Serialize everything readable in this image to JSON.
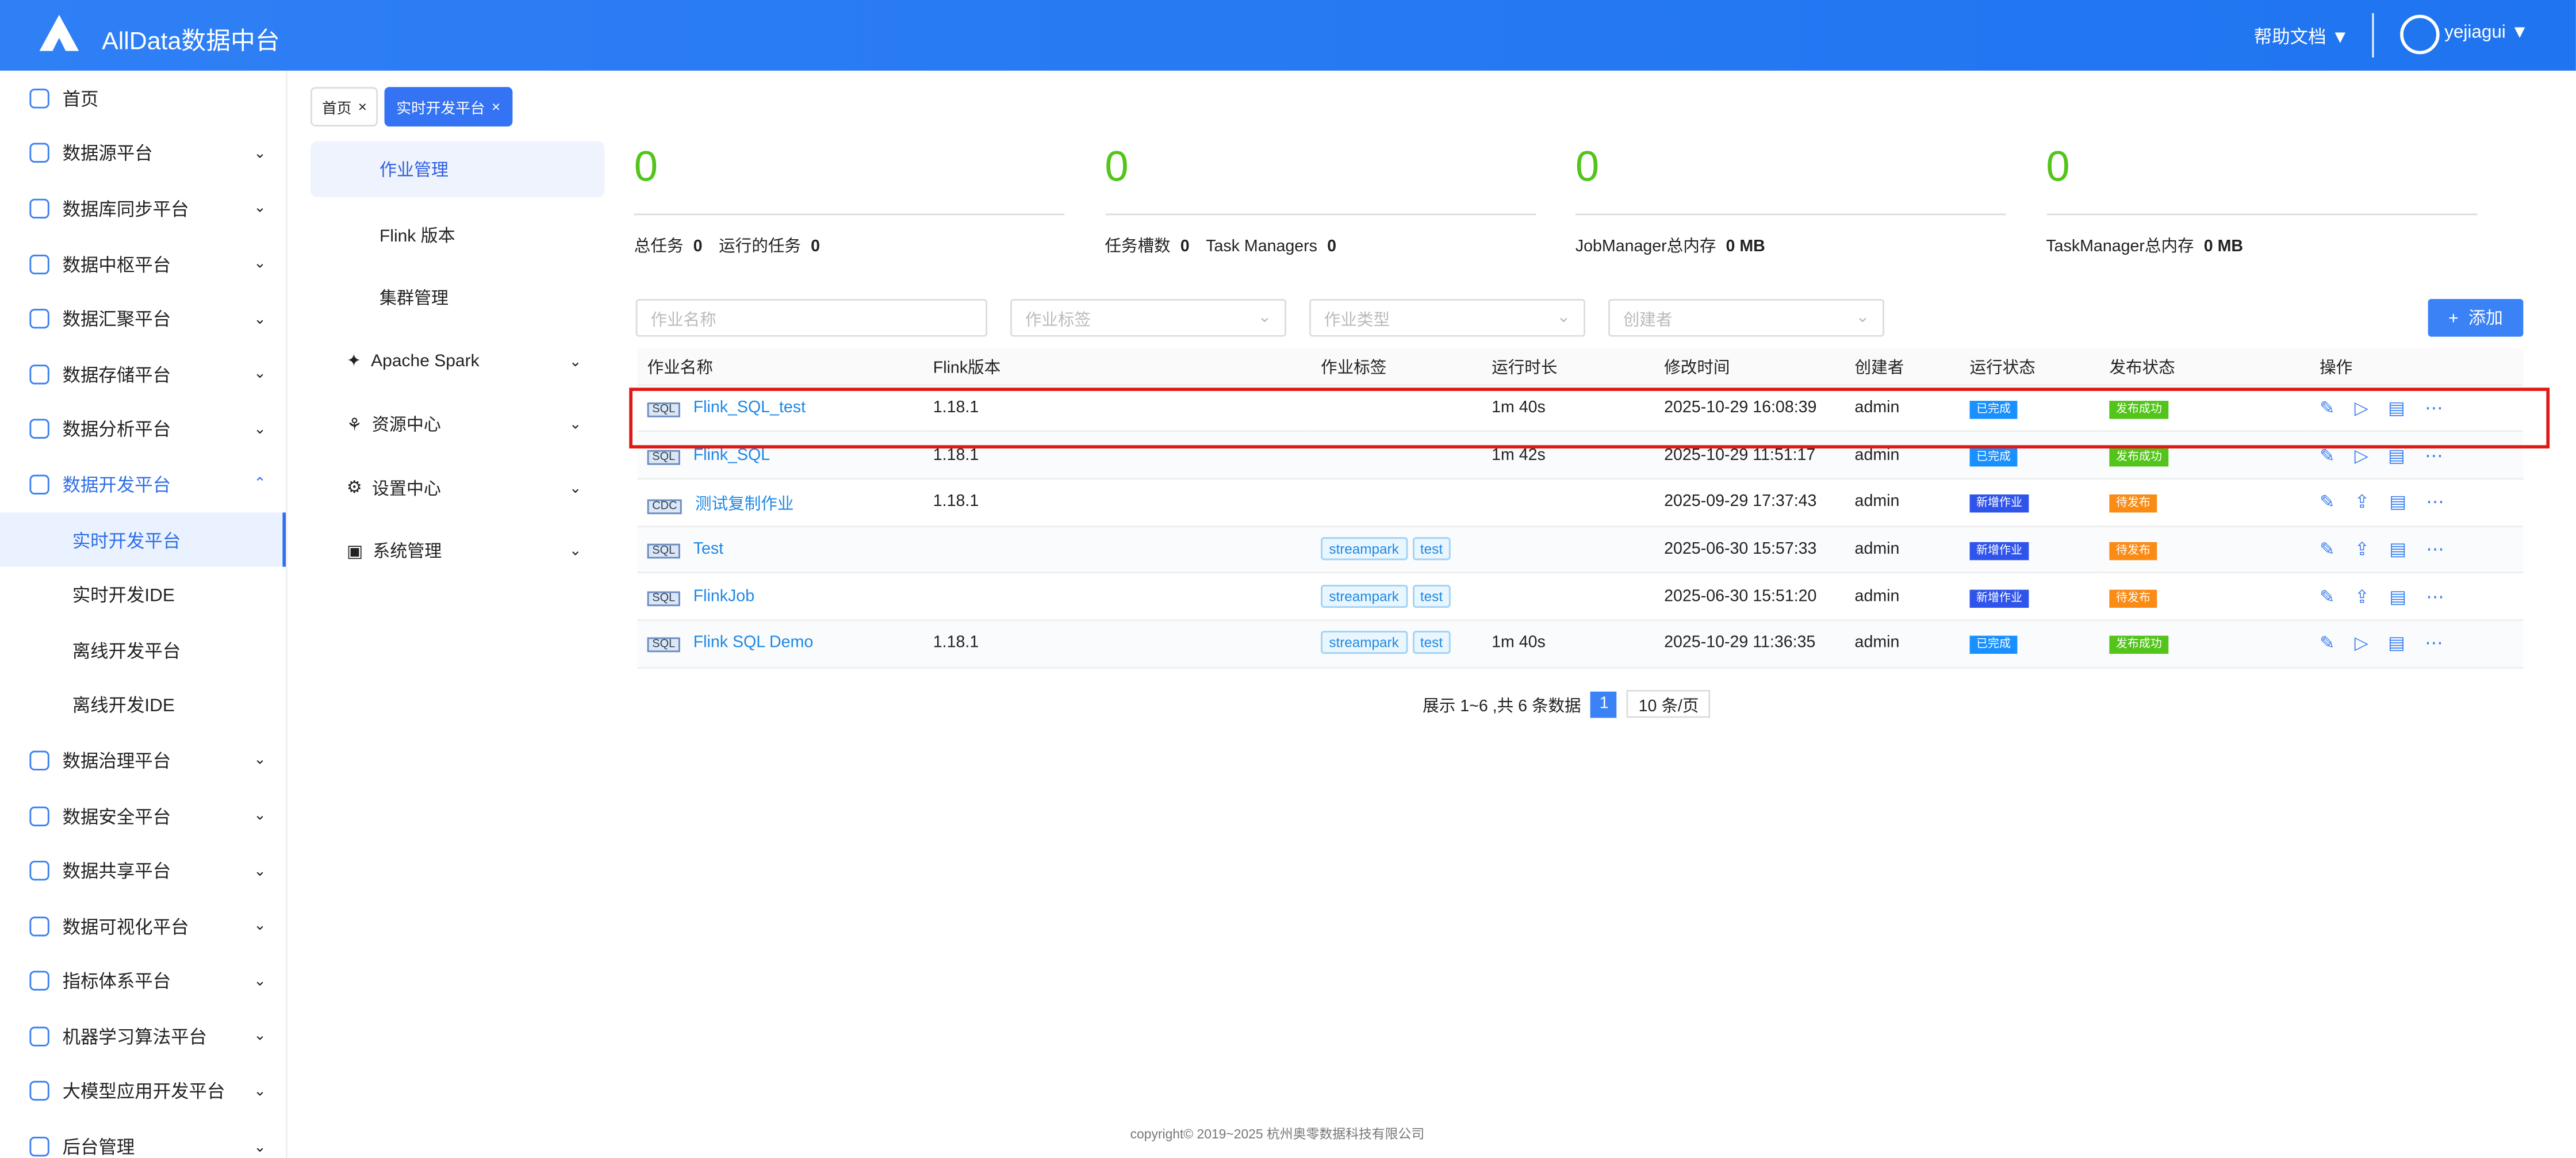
{
  "header": {
    "app_title": "AllData数据中台",
    "help": "帮助文档 ▼",
    "user": "yejiagui ▼"
  },
  "sidebar": {
    "items": [
      {
        "label": "首页",
        "chev": ""
      },
      {
        "label": "数据源平台",
        "chev": "⌄"
      },
      {
        "label": "数据库同步平台",
        "chev": "⌄"
      },
      {
        "label": "数据中枢平台",
        "chev": "⌄"
      },
      {
        "label": "数据汇聚平台",
        "chev": "⌄"
      },
      {
        "label": "数据存储平台",
        "chev": "⌄"
      },
      {
        "label": "数据分析平台",
        "chev": "⌄"
      },
      {
        "label": "数据开发平台",
        "chev": "⌃"
      },
      {
        "label": "实时开发平台",
        "sub": true
      },
      {
        "label": "实时开发IDE",
        "sub": true
      },
      {
        "label": "离线开发平台",
        "sub": true
      },
      {
        "label": "离线开发IDE",
        "sub": true
      },
      {
        "label": "数据治理平台",
        "chev": "⌄"
      },
      {
        "label": "数据安全平台",
        "chev": "⌄"
      },
      {
        "label": "数据共享平台",
        "chev": "⌄"
      },
      {
        "label": "数据可视化平台",
        "chev": "⌄"
      },
      {
        "label": "指标体系平台",
        "chev": "⌄"
      },
      {
        "label": "机器学习算法平台",
        "chev": "⌄"
      },
      {
        "label": "大模型应用开发平台",
        "chev": "⌄"
      },
      {
        "label": "后台管理",
        "chev": "⌄"
      }
    ]
  },
  "tabs": [
    {
      "label": "首页"
    },
    {
      "label": "实时开发平台"
    }
  ],
  "submenu": [
    {
      "label": "作业管理"
    },
    {
      "label": "Flink 版本"
    },
    {
      "label": "集群管理"
    },
    {
      "label": "Apache Spark"
    },
    {
      "label": "资源中心"
    },
    {
      "label": "设置中心"
    },
    {
      "label": "系统管理"
    }
  ],
  "stats": [
    {
      "big": "0",
      "l1": "总任务",
      "v1": "0",
      "l2": "运行的任务",
      "v2": "0"
    },
    {
      "big": "0",
      "l1": "任务槽数",
      "v1": "0",
      "l2": "Task Managers",
      "v2": "0"
    },
    {
      "big": "0",
      "l1": "JobManager总内存",
      "v1": "0 MB",
      "l2": "",
      "v2": ""
    },
    {
      "big": "0",
      "l1": "TaskManager总内存",
      "v1": "0 MB",
      "l2": "",
      "v2": ""
    }
  ],
  "filters": [
    "作业名称",
    "作业标签",
    "作业类型",
    "创建者"
  ],
  "add_label": "添加",
  "columns": [
    "作业名称",
    "Flink版本",
    "作业标签",
    "运行时长",
    "修改时间",
    "创建者",
    "运行状态",
    "发布状态",
    "操作"
  ],
  "rows": [
    {
      "type": "SQL",
      "name": "Flink_SQL_test",
      "ver": "1.18.1",
      "tags": [],
      "dur": "1m 40s",
      "time": "2025-10-29 16:08:39",
      "creator": "admin",
      "run": "已完成",
      "run_color": "#1890ff",
      "pub": "发布成功",
      "pub_color": "#52c41a"
    },
    {
      "type": "SQL",
      "name": "Flink_SQL",
      "ver": "1.18.1",
      "tags": [],
      "dur": "1m 42s",
      "time": "2025-10-29 11:51:17",
      "creator": "admin",
      "run": "已完成",
      "run_color": "#1890ff",
      "pub": "发布成功",
      "pub_color": "#52c41a"
    },
    {
      "type": "CDC",
      "name": "测试复制作业",
      "ver": "1.18.1",
      "tags": [],
      "dur": "",
      "time": "2025-09-29 17:37:43",
      "creator": "admin",
      "run": "新增作业",
      "run_color": "#2f54eb",
      "pub": "待发布",
      "pub_color": "#fa8c16"
    },
    {
      "type": "SQL",
      "name": "Test",
      "ver": "",
      "tags": [
        "streampark",
        "test"
      ],
      "dur": "",
      "time": "2025-06-30 15:57:33",
      "creator": "admin",
      "run": "新增作业",
      "run_color": "#2f54eb",
      "pub": "待发布",
      "pub_color": "#fa8c16"
    },
    {
      "type": "SQL",
      "name": "FlinkJob",
      "ver": "",
      "tags": [
        "streampark",
        "test"
      ],
      "dur": "",
      "time": "2025-06-30 15:51:20",
      "creator": "admin",
      "run": "新增作业",
      "run_color": "#2f54eb",
      "pub": "待发布",
      "pub_color": "#fa8c16"
    },
    {
      "type": "SQL",
      "name": "Flink SQL Demo",
      "ver": "1.18.1",
      "tags": [
        "streampark",
        "test"
      ],
      "dur": "1m 40s",
      "time": "2025-10-29 11:36:35",
      "creator": "admin",
      "run": "已完成",
      "run_color": "#1890ff",
      "pub": "发布成功",
      "pub_color": "#52c41a"
    }
  ],
  "pagination": {
    "summary": "展示 1~6 ,共 6 条数据",
    "page": "1",
    "size": "10 条/页"
  },
  "footer": "copyright© 2019~2025 杭州奥零数据科技有限公司"
}
